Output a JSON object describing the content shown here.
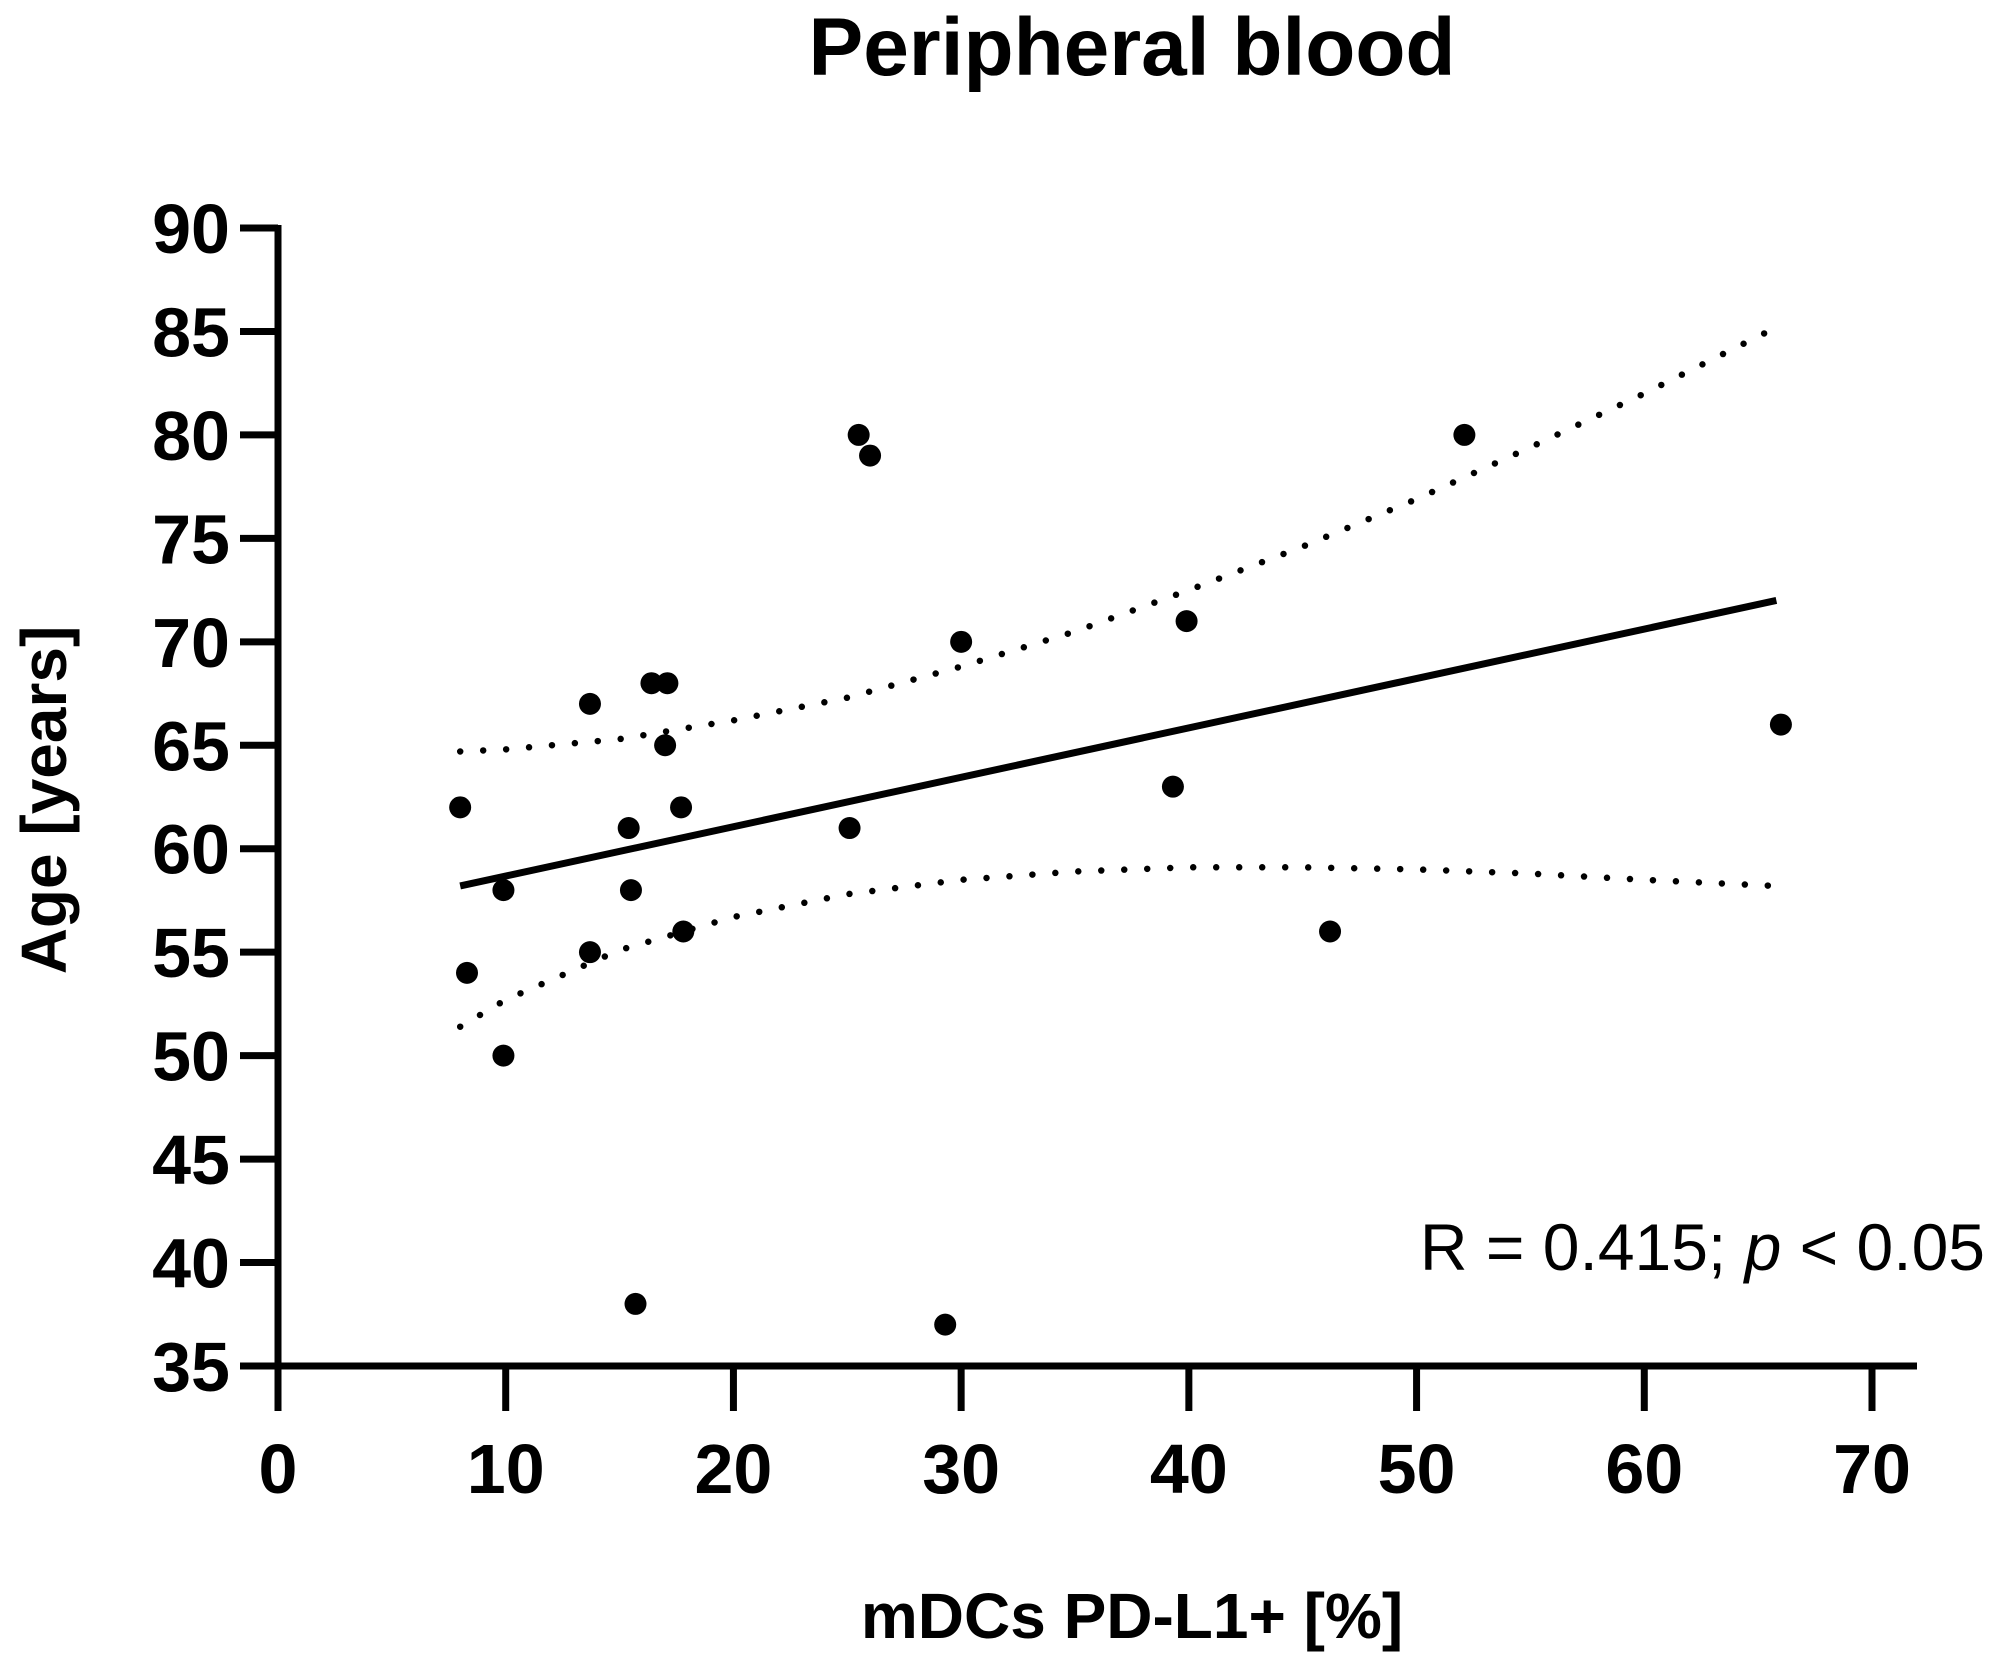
{
  "chart_data": {
    "type": "scatter",
    "title": "Peripheral blood",
    "xlabel": "mDCs PD-L1+ [%]",
    "ylabel": "Age [years]",
    "xlim": [
      0,
      70
    ],
    "ylim": [
      35,
      90
    ],
    "x_ticks": [
      0,
      10,
      20,
      30,
      40,
      50,
      60,
      70
    ],
    "y_ticks": [
      35,
      40,
      45,
      50,
      55,
      60,
      65,
      70,
      75,
      80,
      85,
      90
    ],
    "grid": false,
    "points": [
      {
        "x": 8.0,
        "y": 62
      },
      {
        "x": 8.3,
        "y": 54
      },
      {
        "x": 9.9,
        "y": 58
      },
      {
        "x": 9.9,
        "y": 50
      },
      {
        "x": 13.7,
        "y": 67
      },
      {
        "x": 13.7,
        "y": 55
      },
      {
        "x": 15.4,
        "y": 61
      },
      {
        "x": 15.5,
        "y": 58
      },
      {
        "x": 15.7,
        "y": 38
      },
      {
        "x": 16.4,
        "y": 68
      },
      {
        "x": 17.1,
        "y": 68
      },
      {
        "x": 17.0,
        "y": 65
      },
      {
        "x": 17.7,
        "y": 62
      },
      {
        "x": 17.8,
        "y": 56
      },
      {
        "x": 25.1,
        "y": 61
      },
      {
        "x": 25.5,
        "y": 80
      },
      {
        "x": 26.0,
        "y": 79
      },
      {
        "x": 29.3,
        "y": 37
      },
      {
        "x": 30.0,
        "y": 70
      },
      {
        "x": 39.3,
        "y": 63
      },
      {
        "x": 39.9,
        "y": 71
      },
      {
        "x": 46.2,
        "y": 56
      },
      {
        "x": 52.1,
        "y": 80
      },
      {
        "x": 66.0,
        "y": 66
      }
    ],
    "regression_line": {
      "x": [
        8.0,
        65.8
      ],
      "y": [
        58.2,
        72.0
      ]
    },
    "confidence_band": {
      "style": "dotted",
      "upper": {
        "x": [
          8,
          10,
          15,
          20,
          25,
          30,
          35,
          40,
          45,
          50,
          55,
          60,
          65.8
        ],
        "y": [
          64.7,
          64.8,
          65.3,
          66.2,
          67.3,
          68.8,
          70.5,
          72.5,
          74.6,
          76.9,
          79.4,
          82.0,
          85.2
        ]
      },
      "lower": {
        "x": [
          8,
          10,
          15,
          20,
          25,
          30,
          35,
          40,
          45,
          50,
          55,
          60,
          65.8
        ],
        "y": [
          51.4,
          52.7,
          55.1,
          56.7,
          57.8,
          58.5,
          58.9,
          59.1,
          59.1,
          59.0,
          58.8,
          58.5,
          58.2
        ]
      }
    },
    "annotation": {
      "r_text": "R = 0.415; ",
      "p_symbol": "p",
      "p_text": " < 0.05"
    }
  }
}
